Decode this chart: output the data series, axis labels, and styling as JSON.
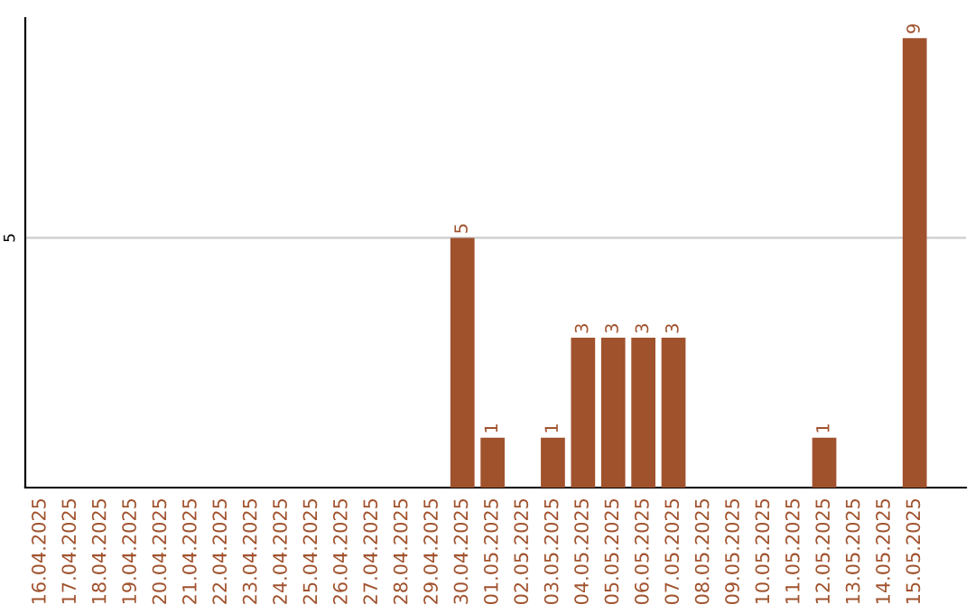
{
  "chart_data": {
    "type": "bar",
    "categories": [
      "16.04.2025",
      "17.04.2025",
      "18.04.2025",
      "19.04.2025",
      "20.04.2025",
      "21.04.2025",
      "22.04.2025",
      "23.04.2025",
      "24.04.2025",
      "25.04.2025",
      "26.04.2025",
      "27.04.2025",
      "28.04.2025",
      "29.04.2025",
      "30.04.2025",
      "01.05.2025",
      "02.05.2025",
      "03.05.2025",
      "04.05.2025",
      "05.05.2025",
      "06.05.2025",
      "07.05.2025",
      "08.05.2025",
      "09.05.2025",
      "10.05.2025",
      "11.05.2025",
      "12.05.2025",
      "13.05.2025",
      "14.05.2025",
      "15.05.2025"
    ],
    "values": [
      null,
      null,
      null,
      null,
      null,
      null,
      null,
      null,
      null,
      null,
      null,
      null,
      null,
      null,
      5,
      1,
      null,
      1,
      3,
      3,
      3,
      3,
      null,
      null,
      null,
      null,
      1,
      null,
      null,
      9
    ],
    "data_labels": true,
    "color": "#a0522d",
    "ylim": [
      0,
      9.4
    ],
    "yticks": [
      5
    ],
    "grid": "y"
  }
}
